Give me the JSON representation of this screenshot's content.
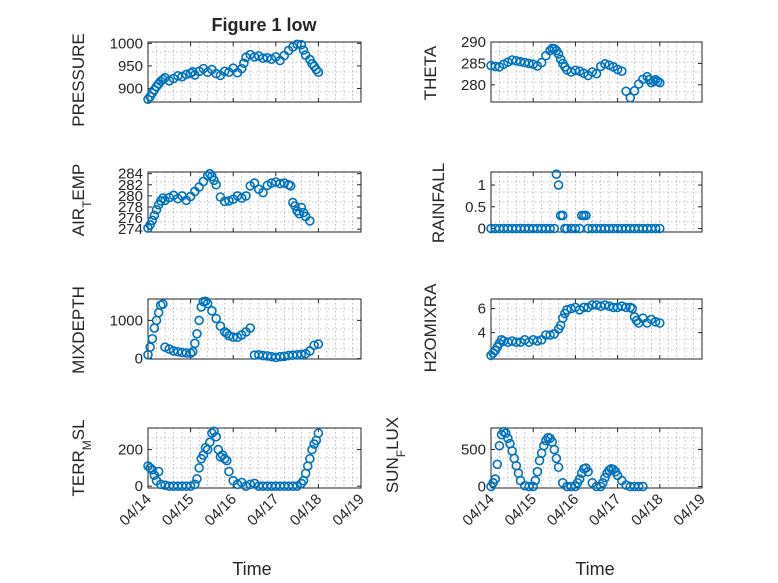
{
  "figure": {
    "title": "Figure 1 low",
    "x_ticks": [
      "04/14",
      "04/15",
      "04/16",
      "04/17",
      "04/18",
      "04/19"
    ],
    "x_label": "Time",
    "marker_color": "#0072bd"
  },
  "chart_data": [
    {
      "type": "scatter",
      "ylabel": "PRESSURE",
      "title": "Figure 1 low",
      "ylim": [
        870,
        1003
      ],
      "yticks": [
        900,
        950,
        1000
      ],
      "xlim": [
        0,
        5
      ],
      "xlabel": "",
      "series": [
        {
          "name": "PRESSURE",
          "x": [
            0.0,
            0.05,
            0.1,
            0.15,
            0.2,
            0.25,
            0.3,
            0.35,
            0.4,
            0.5,
            0.6,
            0.7,
            0.8,
            0.9,
            1.0,
            1.05,
            1.1,
            1.2,
            1.3,
            1.4,
            1.5,
            1.6,
            1.7,
            1.8,
            1.9,
            2.0,
            2.1,
            2.2,
            2.25,
            2.3,
            2.4,
            2.5,
            2.6,
            2.7,
            2.8,
            2.9,
            3.0,
            3.1,
            3.2,
            3.3,
            3.4,
            3.5,
            3.6,
            3.65,
            3.7,
            3.8,
            3.85,
            3.9,
            3.95,
            4.0
          ],
          "y": [
            876,
            882,
            890,
            897,
            904,
            910,
            916,
            920,
            924,
            917,
            922,
            928,
            926,
            931,
            934,
            937,
            930,
            938,
            944,
            936,
            942,
            933,
            929,
            938,
            936,
            945,
            935,
            944,
            956,
            969,
            975,
            970,
            972,
            967,
            968,
            965,
            970,
            962,
            973,
            984,
            992,
            998,
            997,
            985,
            974,
            964,
            955,
            949,
            942,
            936
          ]
        }
      ]
    },
    {
      "type": "scatter",
      "ylabel": "THETA",
      "ylim": [
        276,
        290
      ],
      "yticks": [
        280,
        285,
        290
      ],
      "xlim": [
        0,
        5
      ],
      "series": [
        {
          "name": "THETA",
          "x": [
            0.0,
            0.1,
            0.2,
            0.3,
            0.4,
            0.5,
            0.6,
            0.7,
            0.8,
            0.9,
            1.0,
            1.1,
            1.2,
            1.3,
            1.4,
            1.45,
            1.5,
            1.55,
            1.6,
            1.65,
            1.7,
            1.75,
            1.8,
            1.9,
            2.0,
            2.1,
            2.2,
            2.3,
            2.4,
            2.5,
            2.6,
            2.7,
            2.8,
            2.9,
            3.0,
            3.1,
            3.2,
            3.3,
            3.4,
            3.5,
            3.6,
            3.7,
            3.75,
            3.8,
            3.85,
            3.9,
            3.95,
            4.0
          ],
          "y": [
            284.5,
            284.3,
            284.2,
            284.8,
            285.3,
            285.8,
            285.6,
            285.4,
            285.2,
            285.0,
            284.8,
            284.4,
            285.2,
            286.8,
            288.0,
            288.5,
            288.4,
            288.0,
            287.2,
            286.0,
            285.0,
            284.2,
            283.5,
            283.0,
            283.4,
            283.2,
            282.7,
            282.2,
            283.0,
            282.6,
            284.3,
            284.9,
            284.6,
            284.2,
            283.6,
            283.2,
            278.5,
            277.0,
            278.6,
            280.2,
            281.3,
            281.9,
            281.2,
            280.5,
            280.9,
            281.2,
            280.8,
            280.5
          ]
        }
      ]
    },
    {
      "type": "scatter",
      "ylabel": "AIR_TEMP",
      "ylim": [
        273.5,
        284.3
      ],
      "yticks": [
        274,
        276,
        278,
        280,
        282,
        284
      ],
      "xlim": [
        0,
        5
      ],
      "series": [
        {
          "name": "AIR_TEMP",
          "x": [
            0.0,
            0.05,
            0.1,
            0.15,
            0.2,
            0.25,
            0.3,
            0.35,
            0.4,
            0.5,
            0.6,
            0.7,
            0.8,
            0.9,
            1.0,
            1.1,
            1.2,
            1.3,
            1.4,
            1.45,
            1.5,
            1.55,
            1.6,
            1.7,
            1.8,
            1.9,
            2.0,
            2.1,
            2.2,
            2.3,
            2.4,
            2.5,
            2.6,
            2.7,
            2.8,
            2.9,
            3.0,
            3.1,
            3.2,
            3.3,
            3.35,
            3.4,
            3.45,
            3.5,
            3.55,
            3.6,
            3.65,
            3.7,
            3.8
          ],
          "y": [
            274.2,
            274.8,
            275.6,
            276.5,
            277.5,
            278.4,
            279.1,
            279.6,
            279.2,
            279.7,
            280.1,
            279.5,
            280.0,
            279.2,
            279.9,
            280.8,
            281.6,
            282.6,
            283.6,
            284.0,
            283.5,
            282.8,
            282.0,
            279.8,
            279.0,
            279.1,
            279.4,
            280.0,
            279.6,
            280.0,
            281.8,
            282.3,
            281.2,
            280.6,
            281.9,
            282.3,
            282.5,
            282.2,
            282.3,
            282.0,
            281.8,
            278.8,
            278.2,
            277.3,
            276.8,
            277.9,
            277.0,
            276.3,
            275.5
          ]
        }
      ]
    },
    {
      "type": "scatter",
      "ylabel": "RAINFALL",
      "ylim": [
        -0.08,
        1.3
      ],
      "yticks": [
        0,
        0.5,
        1
      ],
      "xlim": [
        0,
        5
      ],
      "series": [
        {
          "name": "RAINFALL",
          "x": [
            0.0,
            0.1,
            0.2,
            0.3,
            0.4,
            0.5,
            0.6,
            0.7,
            0.8,
            0.9,
            1.0,
            1.1,
            1.2,
            1.3,
            1.4,
            1.5,
            1.55,
            1.6,
            1.65,
            1.7,
            1.75,
            1.8,
            1.9,
            2.0,
            2.1,
            2.15,
            2.2,
            2.25,
            2.3,
            2.4,
            2.5,
            2.6,
            2.7,
            2.8,
            2.9,
            3.0,
            3.1,
            3.2,
            3.3,
            3.4,
            3.5,
            3.6,
            3.7,
            3.8,
            3.9,
            4.0
          ],
          "y": [
            0,
            0,
            0,
            0,
            0,
            0,
            0,
            0,
            0,
            0,
            0,
            0,
            0,
            0,
            0,
            0,
            1.25,
            1.0,
            0.3,
            0.3,
            0,
            0,
            0,
            0,
            0,
            0.3,
            0.3,
            0.3,
            0,
            0,
            0,
            0,
            0,
            0,
            0,
            0,
            0,
            0,
            0,
            0,
            0,
            0,
            0,
            0,
            0,
            0
          ]
        }
      ]
    },
    {
      "type": "scatter",
      "ylabel": "MIXDEPTH",
      "ylim": [
        -10,
        1560
      ],
      "yticks": [
        0,
        1000
      ],
      "xlim": [
        0,
        5
      ],
      "series": [
        {
          "name": "MIXDEPTH",
          "x": [
            0.0,
            0.05,
            0.1,
            0.15,
            0.2,
            0.25,
            0.3,
            0.35,
            0.4,
            0.5,
            0.6,
            0.7,
            0.8,
            0.9,
            1.0,
            1.05,
            1.1,
            1.15,
            1.2,
            1.25,
            1.3,
            1.35,
            1.4,
            1.5,
            1.6,
            1.7,
            1.8,
            1.85,
            1.9,
            2.0,
            2.1,
            2.2,
            2.3,
            2.4,
            2.5,
            2.6,
            2.7,
            2.8,
            2.9,
            3.0,
            3.1,
            3.2,
            3.3,
            3.4,
            3.5,
            3.6,
            3.7,
            3.8,
            3.9,
            4.0
          ],
          "y": [
            100,
            300,
            520,
            800,
            1000,
            1200,
            1400,
            1430,
            300,
            250,
            200,
            180,
            160,
            150,
            140,
            180,
            400,
            650,
            1000,
            1350,
            1490,
            1500,
            1440,
            1250,
            1050,
            850,
            700,
            660,
            600,
            560,
            560,
            620,
            700,
            800,
            90,
            100,
            80,
            70,
            50,
            30,
            50,
            60,
            80,
            90,
            100,
            110,
            130,
            200,
            350,
            380
          ]
        }
      ]
    },
    {
      "type": "scatter",
      "ylabel": "H2OMIXRA",
      "ylim": [
        1.8,
        6.8
      ],
      "yticks": [
        4,
        6
      ],
      "xlim": [
        0,
        5
      ],
      "series": [
        {
          "name": "H2OMIXRA",
          "x": [
            0.0,
            0.05,
            0.1,
            0.15,
            0.2,
            0.25,
            0.3,
            0.4,
            0.5,
            0.6,
            0.7,
            0.8,
            0.9,
            1.0,
            1.1,
            1.2,
            1.3,
            1.4,
            1.5,
            1.6,
            1.65,
            1.7,
            1.75,
            1.8,
            1.9,
            2.0,
            2.1,
            2.2,
            2.3,
            2.4,
            2.5,
            2.6,
            2.7,
            2.8,
            2.9,
            3.0,
            3.1,
            3.2,
            3.3,
            3.35,
            3.4,
            3.45,
            3.5,
            3.6,
            3.7,
            3.8,
            3.9,
            4.0
          ],
          "y": [
            2.1,
            2.3,
            2.5,
            2.8,
            3.1,
            3.4,
            3.3,
            3.2,
            3.3,
            3.2,
            3.2,
            3.4,
            3.2,
            3.4,
            3.3,
            3.4,
            3.8,
            3.8,
            3.9,
            4.3,
            4.6,
            5.2,
            5.6,
            5.9,
            6.0,
            6.1,
            5.9,
            6.1,
            6.1,
            6.3,
            6.3,
            6.2,
            6.3,
            6.2,
            6.1,
            6.1,
            6.2,
            6.1,
            6.1,
            6.0,
            5.3,
            5.0,
            4.8,
            5.2,
            4.8,
            5.1,
            4.9,
            4.8
          ]
        }
      ]
    },
    {
      "type": "scatter",
      "ylabel": "TERR_MSL",
      "ylim": [
        -10,
        318
      ],
      "yticks": [
        0,
        200
      ],
      "xlim": [
        0,
        5
      ],
      "xlabel": "Time",
      "xticklabels": [
        "04/14",
        "04/15",
        "04/16",
        "04/17",
        "04/18",
        "04/19"
      ],
      "series": [
        {
          "name": "TERR_MSL",
          "x": [
            0.0,
            0.05,
            0.1,
            0.15,
            0.2,
            0.25,
            0.3,
            0.4,
            0.5,
            0.6,
            0.7,
            0.8,
            0.9,
            1.0,
            1.1,
            1.15,
            1.2,
            1.25,
            1.3,
            1.35,
            1.4,
            1.45,
            1.5,
            1.55,
            1.6,
            1.65,
            1.7,
            1.75,
            1.8,
            1.85,
            1.9,
            2.0,
            2.1,
            2.2,
            2.3,
            2.4,
            2.5,
            2.6,
            2.7,
            2.8,
            2.9,
            3.0,
            3.1,
            3.2,
            3.3,
            3.4,
            3.5,
            3.6,
            3.65,
            3.7,
            3.75,
            3.8,
            3.85,
            3.9,
            3.95,
            4.0
          ],
          "y": [
            110,
            100,
            90,
            60,
            30,
            80,
            10,
            5,
            0,
            0,
            0,
            0,
            0,
            0,
            10,
            40,
            100,
            150,
            170,
            210,
            200,
            240,
            290,
            300,
            270,
            200,
            160,
            170,
            150,
            140,
            80,
            30,
            10,
            20,
            0,
            10,
            15,
            0,
            0,
            0,
            0,
            0,
            0,
            0,
            0,
            0,
            0,
            15,
            30,
            70,
            110,
            150,
            200,
            230,
            250,
            290
          ]
        }
      ]
    },
    {
      "type": "scatter",
      "ylabel": "SUN_FLUX",
      "ylim": [
        -20,
        790
      ],
      "yticks": [
        0,
        500
      ],
      "xlim": [
        0,
        5
      ],
      "xlabel": "Time",
      "xticklabels": [
        "04/14",
        "04/15",
        "04/16",
        "04/17",
        "04/18",
        "04/19"
      ],
      "series": [
        {
          "name": "SUN_FLUX",
          "x": [
            0.0,
            0.05,
            0.1,
            0.15,
            0.2,
            0.25,
            0.3,
            0.35,
            0.4,
            0.45,
            0.5,
            0.55,
            0.6,
            0.65,
            0.7,
            0.8,
            0.9,
            1.0,
            1.05,
            1.1,
            1.15,
            1.2,
            1.25,
            1.3,
            1.35,
            1.4,
            1.45,
            1.5,
            1.55,
            1.6,
            1.7,
            1.8,
            1.9,
            2.0,
            2.05,
            2.1,
            2.15,
            2.2,
            2.25,
            2.3,
            2.4,
            2.5,
            2.6,
            2.65,
            2.7,
            2.75,
            2.8,
            2.85,
            2.9,
            2.95,
            3.0,
            3.1,
            3.2,
            3.3,
            3.4,
            3.5,
            3.6
          ],
          "y": [
            0,
            50,
            100,
            300,
            550,
            700,
            740,
            720,
            650,
            580,
            480,
            380,
            280,
            180,
            80,
            10,
            0,
            0,
            80,
            200,
            350,
            450,
            550,
            620,
            660,
            650,
            600,
            500,
            380,
            260,
            50,
            0,
            0,
            0,
            50,
            100,
            180,
            240,
            250,
            200,
            50,
            0,
            0,
            50,
            120,
            180,
            220,
            240,
            230,
            200,
            150,
            80,
            20,
            0,
            0,
            0,
            0
          ]
        }
      ]
    }
  ]
}
